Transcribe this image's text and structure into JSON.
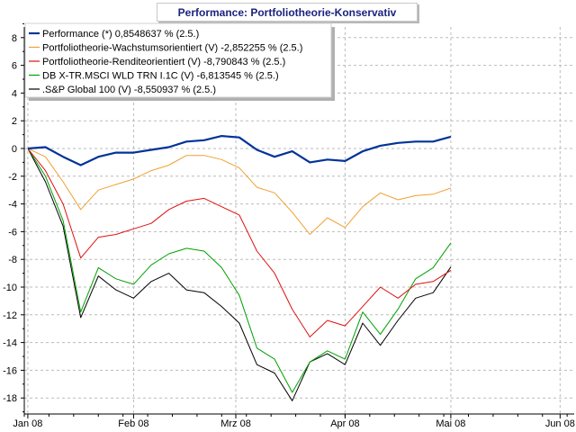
{
  "chart_data": {
    "type": "line",
    "title": "Performance: Portfoliotheorie-Konservativ",
    "ylim": [
      -19,
      9
    ],
    "y_ticks": [
      8,
      6,
      4,
      2,
      0,
      -2,
      -4,
      -6,
      -8,
      -10,
      -12,
      -14,
      -16,
      -18
    ],
    "x_range": [
      "2008-01-01",
      "2008-06-05"
    ],
    "x_ticks": [
      {
        "date": "2008-01-02",
        "label": "Jan 08"
      },
      {
        "date": "2008-02-01",
        "label": "Feb 08"
      },
      {
        "date": "2008-03-01",
        "label": "Mrz 08"
      },
      {
        "date": "2008-04-01",
        "label": "Apr 08"
      },
      {
        "date": "2008-05-01",
        "label": "Mai 08"
      },
      {
        "date": "2008-06-01",
        "label": "Jun 08"
      }
    ],
    "grid": true,
    "legend_position": "top-left",
    "x": [
      "2008-01-02",
      "2008-01-07",
      "2008-01-12",
      "2008-01-17",
      "2008-01-22",
      "2008-01-27",
      "2008-02-01",
      "2008-02-06",
      "2008-02-11",
      "2008-02-16",
      "2008-02-21",
      "2008-02-26",
      "2008-03-02",
      "2008-03-07",
      "2008-03-12",
      "2008-03-17",
      "2008-03-22",
      "2008-03-27",
      "2008-04-01",
      "2008-04-06",
      "2008-04-11",
      "2008-04-16",
      "2008-04-21",
      "2008-04-26",
      "2008-05-01"
    ],
    "series": [
      {
        "name": "Performance (*) 0,8548637 % (2.5.)",
        "color": "#003399",
        "values": [
          0,
          0.1,
          -0.6,
          -1.2,
          -0.6,
          -0.3,
          -0.3,
          -0.1,
          0.1,
          0.5,
          0.6,
          0.9,
          0.8,
          -0.1,
          -0.6,
          -0.2,
          -1.0,
          -0.8,
          -0.9,
          -0.2,
          0.2,
          0.4,
          0.5,
          0.5,
          0.85
        ]
      },
      {
        "name": "Portfoliotheorie-Wachstumsorientiert (V) -2,852255 % (2.5.)",
        "color": "#f0a030",
        "values": [
          0,
          -0.6,
          -2.4,
          -4.4,
          -3.0,
          -2.6,
          -2.2,
          -1.6,
          -1.2,
          -0.5,
          -0.5,
          -0.8,
          -1.4,
          -2.8,
          -3.2,
          -4.6,
          -6.2,
          -5.0,
          -5.7,
          -4.2,
          -3.2,
          -3.7,
          -3.4,
          -3.3,
          -2.85
        ]
      },
      {
        "name": "Portfoliotheorie-Renditeorientiert (V) -8,790843 % (2.5.)",
        "color": "#e01010",
        "values": [
          0,
          -1.6,
          -4.0,
          -7.9,
          -6.4,
          -6.2,
          -5.8,
          -5.4,
          -4.4,
          -3.8,
          -3.6,
          -4.2,
          -4.8,
          -7.4,
          -9.0,
          -11.6,
          -13.6,
          -12.4,
          -12.8,
          -11.4,
          -10.0,
          -10.8,
          -9.8,
          -9.6,
          -8.79
        ]
      },
      {
        "name": "DB X-TR.MSCI WLD TRN I.1C (V) -6,813545 % (2.5.)",
        "color": "#00a000",
        "values": [
          0,
          -2.0,
          -5.2,
          -11.8,
          -8.6,
          -9.4,
          -9.8,
          -8.4,
          -7.6,
          -7.2,
          -7.4,
          -8.6,
          -10.6,
          -14.4,
          -15.2,
          -17.6,
          -15.4,
          -14.6,
          -15.2,
          -11.8,
          -13.4,
          -11.6,
          -9.4,
          -8.6,
          -6.81
        ]
      },
      {
        "name": ".S&P Global 100 (V) -8,550937 % (2.5.)",
        "color": "#000000",
        "values": [
          0,
          -2.4,
          -5.6,
          -12.2,
          -9.2,
          -10.2,
          -10.8,
          -9.6,
          -9.0,
          -10.2,
          -10.4,
          -11.4,
          -12.6,
          -15.6,
          -16.2,
          -18.2,
          -15.4,
          -14.8,
          -15.6,
          -12.6,
          -14.2,
          -12.4,
          -10.8,
          -10.4,
          -8.55
        ]
      }
    ]
  }
}
